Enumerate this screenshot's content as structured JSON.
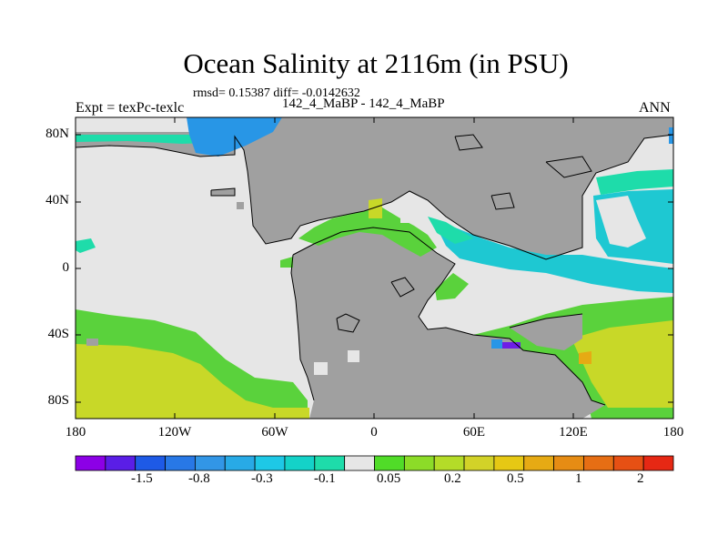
{
  "title": "Ocean Salinity at 2116m (in PSU)",
  "stats": "rmsd= 0.15387 diff= -0.0142632",
  "subtitle": "142_4_MaBP - 142_4_MaBP",
  "left_label": "Expt = texPc-texlc",
  "right_label": "ANN",
  "lat_ticks": [
    "80N",
    "40N",
    "0",
    "40S",
    "80S"
  ],
  "lon_ticks": [
    "180",
    "120W",
    "60W",
    "0",
    "60E",
    "120E",
    "180"
  ],
  "colorbar": {
    "colors": [
      "#8c00e6",
      "#5a1ee6",
      "#1e5ae6",
      "#2878e6",
      "#3296e6",
      "#28aae6",
      "#1ec8e6",
      "#14d2c8",
      "#1edcaa",
      "#e6e6e6",
      "#50dc28",
      "#8cdc28",
      "#b4dc28",
      "#d2d228",
      "#e6c814",
      "#e6aa14",
      "#e68c14",
      "#e66e14",
      "#e65014",
      "#e62814"
    ],
    "labels": [
      "-1.5",
      "-0.8",
      "-0.3",
      "-0.1",
      "0.05",
      "0.2",
      "0.5",
      "1",
      "2"
    ]
  },
  "map_colors": {
    "land": "#a0a0a0",
    "near_zero": "#e6e6e6",
    "deep_green": "#5ad23c",
    "green": "#8cdc28",
    "yellow_green": "#c8d828",
    "cyan": "#1ec8d2",
    "teal": "#1edcaa",
    "blue": "#2896e6",
    "purple": "#6e1ee6",
    "orange": "#e6aa14",
    "coast": "#000000"
  }
}
